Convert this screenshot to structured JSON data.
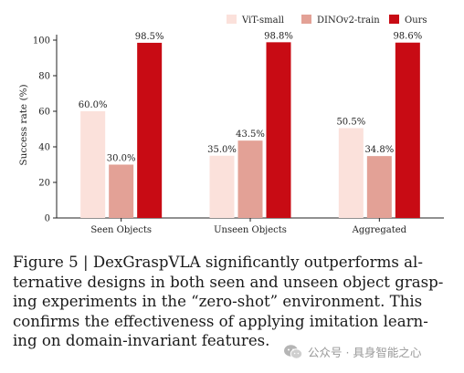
{
  "chart_data": {
    "type": "bar",
    "categories": [
      "Seen Objects",
      "Unseen Objects",
      "Aggregated"
    ],
    "series": [
      {
        "name": "ViT-small",
        "values": [
          60.0,
          35.0,
          50.5
        ],
        "labels": [
          "60.0%",
          "35.0%",
          "50.5%"
        ],
        "color": "#fbe1db"
      },
      {
        "name": "DINOv2-train",
        "values": [
          30.0,
          43.5,
          34.8
        ],
        "labels": [
          "30.0%",
          "43.5%",
          "34.8%"
        ],
        "color": "#e3a196"
      },
      {
        "name": "Ours",
        "values": [
          98.5,
          98.8,
          98.6
        ],
        "labels": [
          "98.5%",
          "98.8%",
          "98.6%"
        ],
        "color": "#c80b14"
      }
    ],
    "ylabel": "Success rate (%)",
    "yticks": [
      0,
      20,
      40,
      60,
      80,
      100
    ],
    "ylim": [
      0,
      100
    ],
    "legend_position": "top-right",
    "grid": false
  },
  "caption": {
    "lines": [
      "Figure 5 | DexGraspVLA significantly outperforms al-",
      "ternative designs in both seen and unseen object grasp-",
      "ing experiments in the “zero-shot” environment. This",
      "confirms the effectiveness of applying imitation learn-",
      "ing on domain-invariant features."
    ]
  },
  "watermark": {
    "text": "公众号 · 具身智能之心",
    "icon": "wechat-icon"
  }
}
